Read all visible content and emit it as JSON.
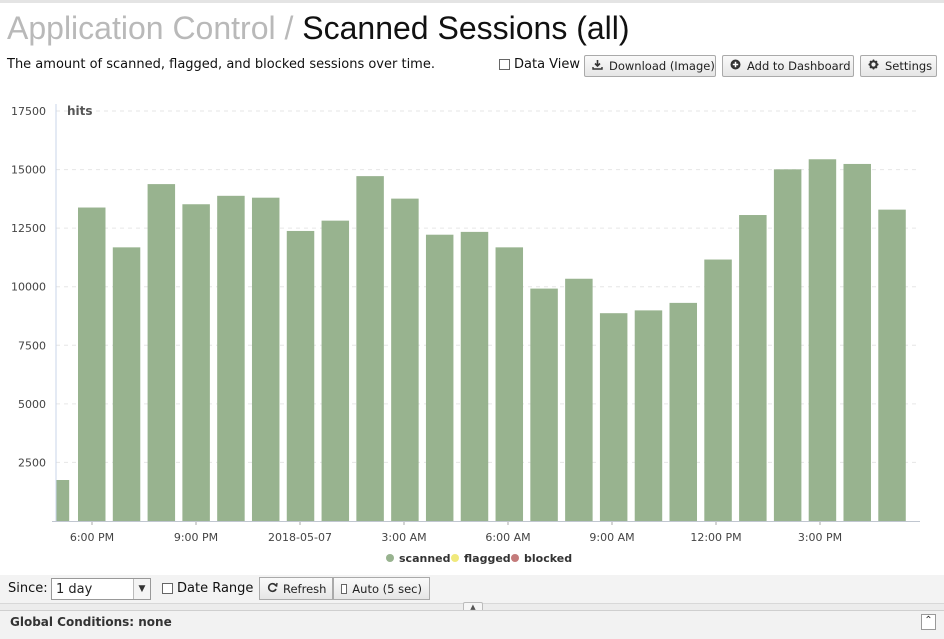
{
  "header": {
    "section": "Application Control",
    "separator": "/",
    "title": "Scanned Sessions (all)",
    "description": "The amount of scanned, flagged, and blocked sessions over time."
  },
  "toolbar": {
    "data_view_label": "Data View",
    "download_label": "Download (Image)",
    "add_dashboard_label": "Add to Dashboard",
    "settings_label": "Settings"
  },
  "chart_data": {
    "type": "bar",
    "ylabel": "hits",
    "ylim": [
      0,
      17500
    ],
    "y_ticks": [
      2500,
      5000,
      7500,
      10000,
      12500,
      15000,
      17500
    ],
    "x_tick_labels": [
      "6:00 PM",
      "9:00 PM",
      "2018-05-07",
      "3:00 AM",
      "6:00 AM",
      "9:00 AM",
      "12:00 PM",
      "3:00 PM"
    ],
    "grid": true,
    "legend_placement": "bottom",
    "series": [
      {
        "name": "scanned",
        "color": "#98b38f",
        "values": [
          1750,
          13380,
          11680,
          14380,
          13520,
          13880,
          13800,
          12380,
          12820,
          14720,
          13760,
          12220,
          12340,
          11680,
          9920,
          10340,
          8870,
          8990,
          9310,
          11160,
          13060,
          15010,
          15440,
          15240,
          13290
        ]
      },
      {
        "name": "flagged",
        "color": "#f0e97c",
        "values": []
      },
      {
        "name": "blocked",
        "color": "#c47b7b",
        "values": []
      }
    ]
  },
  "footer": {
    "since_label": "Since:",
    "since_value": "1 day",
    "date_range_label": "Date Range",
    "refresh_label": "Refresh",
    "auto_label": "Auto (5 sec)"
  },
  "global_conditions": {
    "label": "Global Conditions: none"
  }
}
